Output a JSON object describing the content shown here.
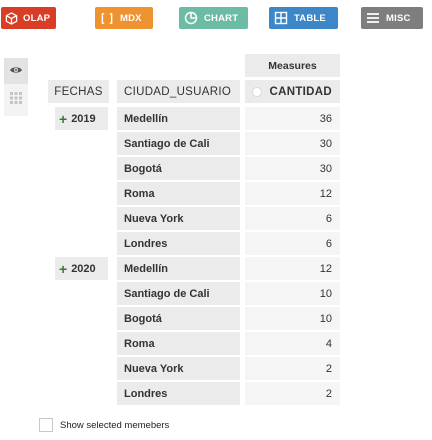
{
  "toolbar": {
    "olap_label": "OLAP",
    "mdx_label": "MDX",
    "chart_label": "CHART",
    "table_label": "TABLE",
    "misc_label": "MISC"
  },
  "pivot": {
    "measures_header": "Measures",
    "columns": {
      "fechas": "FECHAS",
      "ciudad": "CIUDAD_USUARIO",
      "cantidad": "CANTIDAD"
    },
    "groups": [
      {
        "year": "2019",
        "rows": [
          {
            "city": "Medellín",
            "value": "36"
          },
          {
            "city": "Santiago de Cali",
            "value": "30"
          },
          {
            "city": "Bogotá",
            "value": "30"
          },
          {
            "city": "Roma",
            "value": "12"
          },
          {
            "city": "Nueva York",
            "value": "6"
          },
          {
            "city": "Londres",
            "value": "6"
          }
        ]
      },
      {
        "year": "2020",
        "rows": [
          {
            "city": "Medellín",
            "value": "12"
          },
          {
            "city": "Santiago de Cali",
            "value": "10"
          },
          {
            "city": "Bogotá",
            "value": "10"
          },
          {
            "city": "Roma",
            "value": "4"
          },
          {
            "city": "Nueva York",
            "value": "2"
          },
          {
            "city": "Londres",
            "value": "2"
          }
        ]
      }
    ]
  },
  "footer": {
    "show_selected_label": "Show selected memebers"
  }
}
